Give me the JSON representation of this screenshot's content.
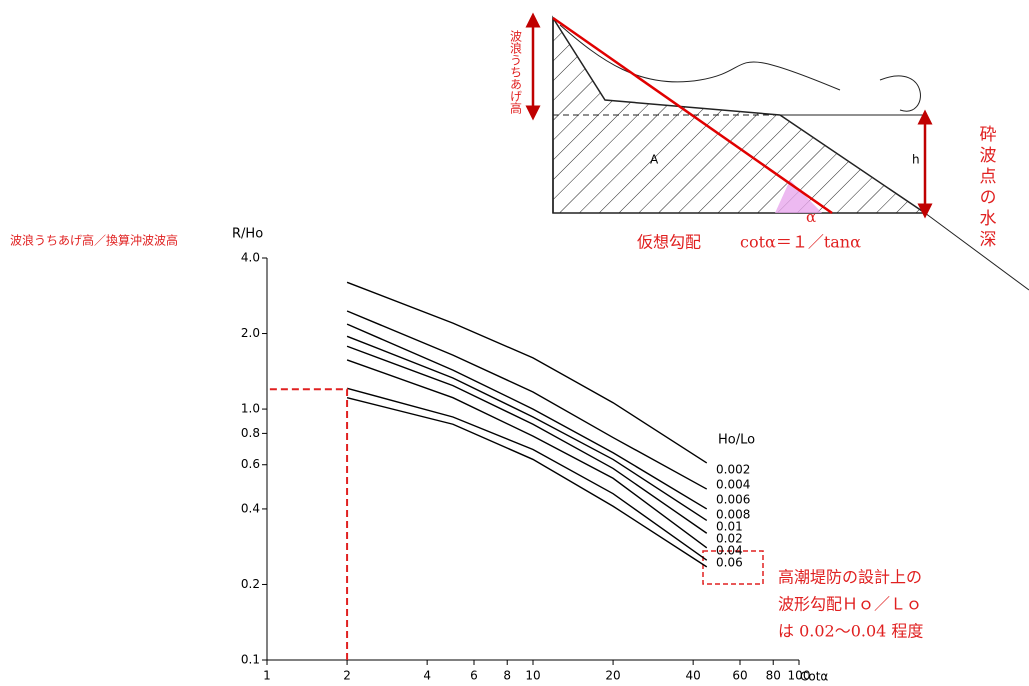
{
  "chart_data": {
    "type": "line",
    "y_axis_caption": "波浪うちあげ高／換算沖波波高",
    "y_label": "R/Ho",
    "x_label": "Cotα",
    "legend_title": "Ho/Lo",
    "log_x": true,
    "log_y": true,
    "color": "#000000",
    "x": [
      2,
      5,
      10,
      20,
      45
    ],
    "series": [
      {
        "name": "0.002",
        "values": [
          3.2,
          2.2,
          1.6,
          1.06,
          0.61
        ]
      },
      {
        "name": "0.004",
        "values": [
          2.46,
          1.64,
          1.17,
          0.77,
          0.48
        ]
      },
      {
        "name": "0.006",
        "values": [
          2.18,
          1.43,
          1.0,
          0.67,
          0.4
        ]
      },
      {
        "name": "0.008",
        "values": [
          1.95,
          1.33,
          0.93,
          0.63,
          0.36
        ]
      },
      {
        "name": "0.01",
        "values": [
          1.78,
          1.24,
          0.87,
          0.58,
          0.32
        ]
      },
      {
        "name": "0.02",
        "values": [
          1.57,
          1.11,
          0.78,
          0.53,
          0.28
        ]
      },
      {
        "name": "0.04",
        "values": [
          1.21,
          0.93,
          0.69,
          0.46,
          0.25
        ]
      },
      {
        "name": "0.06",
        "values": [
          1.11,
          0.87,
          0.63,
          0.41,
          0.235
        ]
      }
    ],
    "xlim": [
      1,
      100
    ],
    "ylim": [
      0.1,
      4
    ],
    "xticks": [
      1,
      2,
      4,
      6,
      8,
      10,
      20,
      40,
      60,
      80,
      100
    ],
    "yticks": [
      0.1,
      0.2,
      0.4,
      0.6,
      0.8,
      {
        "value": 1,
        "label": "1.0"
      },
      {
        "value": 2,
        "label": "2.0"
      },
      {
        "value": 4,
        "label": "4.0"
      }
    ],
    "guide": {
      "x": 2,
      "y": 1.2,
      "color": "#e02020"
    },
    "note_lines": [
      "高潮堤防の設計上の",
      "波形勾配Ｈｏ／Ｌｏ",
      "は 0.02～0.04 程度"
    ]
  },
  "diagram": {
    "runup_label": "波浪うちあげ高",
    "depth_label": "砕波点の水深",
    "slope_label": "仮想勾配",
    "formula": "cotα＝１／tanα",
    "area_label": "A",
    "depth_symbol": "h",
    "angle_symbol": "α"
  }
}
